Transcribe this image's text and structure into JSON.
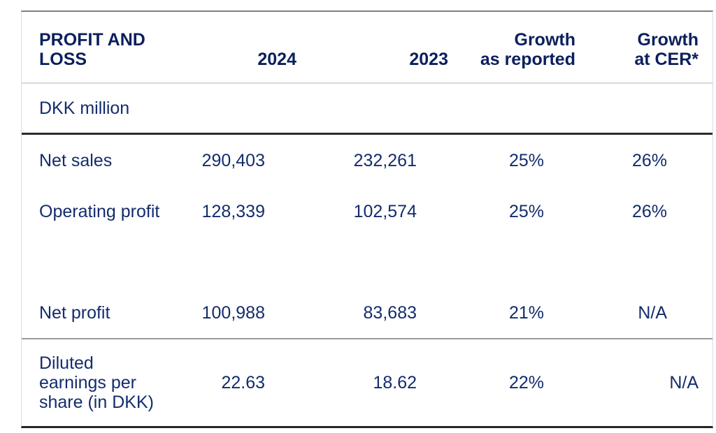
{
  "table": {
    "title_note": "Profit and loss summary table",
    "header": {
      "col_label": "PROFIT AND\nLOSS",
      "col_2024": "2024",
      "col_2023": "2023",
      "col_growth_reported": "Growth\nas reported",
      "col_growth_cer": "Growth\nat CER*"
    },
    "unit_label": "DKK million",
    "rows": [
      {
        "label": "Net sales",
        "y2024": "290,403",
        "y2023": "232,261",
        "growth_reported": "25%",
        "growth_cer": "26%"
      },
      {
        "label": "Operating profit",
        "y2024": "128,339",
        "y2023": "102,574",
        "growth_reported": "25%",
        "growth_cer": "26%"
      },
      {
        "label": "Net profit",
        "y2024": "100,988",
        "y2023": "83,683",
        "growth_reported": "21%",
        "growth_cer": "N/A"
      },
      {
        "label": "Diluted\nearnings per\nshare (in DKK)",
        "y2024": "22.63",
        "y2023": "18.62",
        "growth_reported": "22%",
        "growth_cer": "N/A"
      }
    ],
    "colors": {
      "header_text": "#0b1f5e",
      "body_text": "#132c6d",
      "border_top": "#7f7f7f",
      "border_header_bottom": "#d9d9d9",
      "border_unit_bottom": "#2b2b2b",
      "border_netprofit_bottom": "#9b9b9b",
      "border_table_bottom": "#262626",
      "border_sides": "#dcdcdc",
      "background": "#ffffff"
    }
  }
}
